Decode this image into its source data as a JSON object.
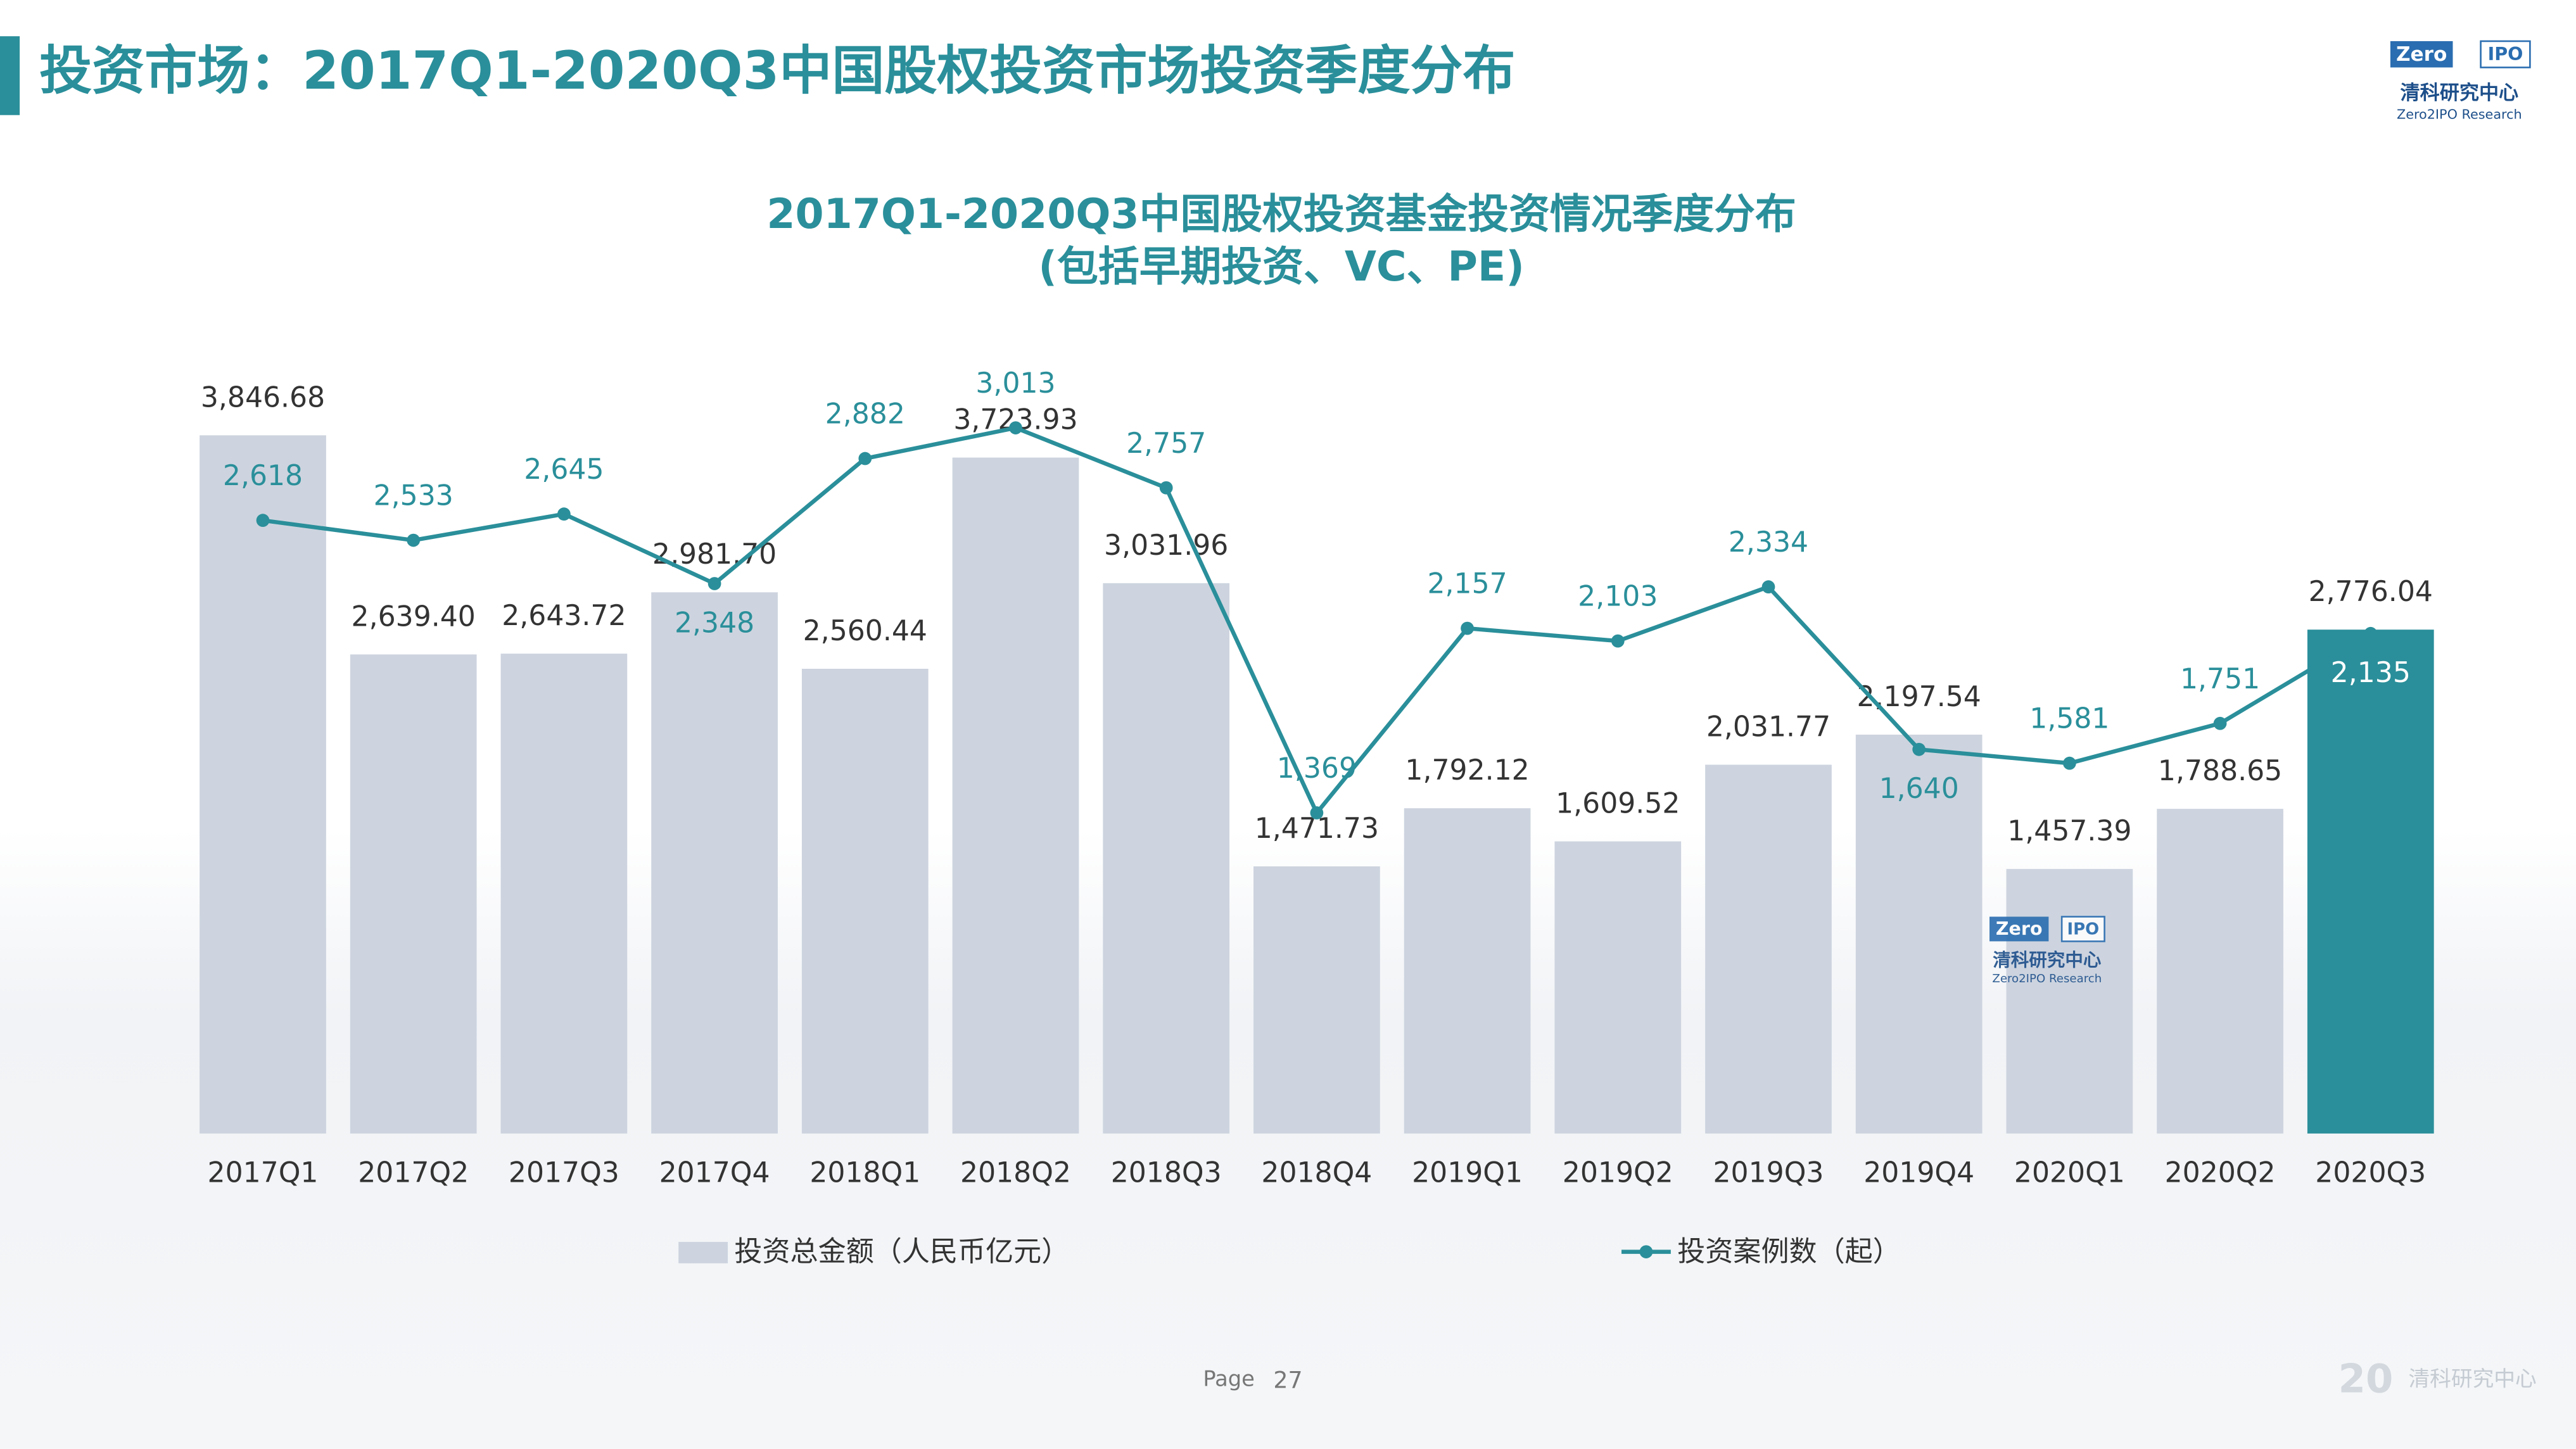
{
  "slide_title": "投资市场：2017Q1-2020Q3中国股权投资市场投资季度分布",
  "logo": {
    "word_left": "Zero",
    "word_right": "IPO",
    "name": "清科研究中心",
    "name_en": "Zero2IPO Research"
  },
  "footer": {
    "page_label": "Page",
    "page_number": "27",
    "anniversary": "20",
    "brand": "清科研究中心"
  },
  "chart_data": {
    "type": "bar-line",
    "title": "2017Q1-2020Q3中国股权投资基金投资情况季度分布",
    "subtitle": "(包括早期投资、VC、PE)",
    "categories": [
      "2017Q1",
      "2017Q2",
      "2017Q3",
      "2017Q4",
      "2018Q1",
      "2018Q2",
      "2018Q3",
      "2018Q4",
      "2019Q1",
      "2019Q2",
      "2019Q3",
      "2019Q4",
      "2020Q1",
      "2020Q2",
      "2020Q3"
    ],
    "ylim": [
      0,
      4000
    ],
    "y2lim": [
      0,
      3100
    ],
    "series": [
      {
        "name": "投资总金额（人民币亿元）",
        "type": "bar",
        "color": "#cdd4df",
        "colors": [
          "#cdd4df",
          "#cdd4df",
          "#cdd4df",
          "#cdd4df",
          "#cdd4df",
          "#cdd4df",
          "#cdd4df",
          "#cdd4df",
          "#cdd4df",
          "#cdd4df",
          "#cdd4df",
          "#cdd4df",
          "#cdd4df",
          "#cdd4df",
          "#2a8f9a"
        ],
        "values": [
          3846.68,
          2639.4,
          2643.72,
          2981.7,
          2560.44,
          3723.93,
          3031.96,
          1471.73,
          1792.12,
          1609.52,
          2031.77,
          2197.54,
          1457.39,
          1788.65,
          2776.04
        ],
        "value_labels": [
          "3,846.68",
          "2,639.40",
          "2,643.72",
          "2,981.70",
          "2,560.44",
          "3,723.93",
          "3,031.96",
          "1,471.73",
          "1,792.12",
          "1,609.52",
          "2,031.77",
          "2,197.54",
          "1,457.39",
          "1,788.65",
          "2,776.04"
        ]
      },
      {
        "name": "投资案例数（起）",
        "type": "line",
        "axis": "y2",
        "color": "#2a8f9a",
        "values": [
          2618,
          2533,
          2645,
          2348,
          2882,
          3013,
          2757,
          1369,
          2157,
          2103,
          2334,
          1640,
          1581,
          1751,
          2135
        ],
        "value_labels": [
          "2,618",
          "2,533",
          "2,645",
          "2,348",
          "2,882",
          "3,013",
          "2,757",
          "1,369",
          "2,157",
          "2,103",
          "2,334",
          "1,640",
          "1,581",
          "1,751",
          "2,135"
        ]
      }
    ]
  }
}
